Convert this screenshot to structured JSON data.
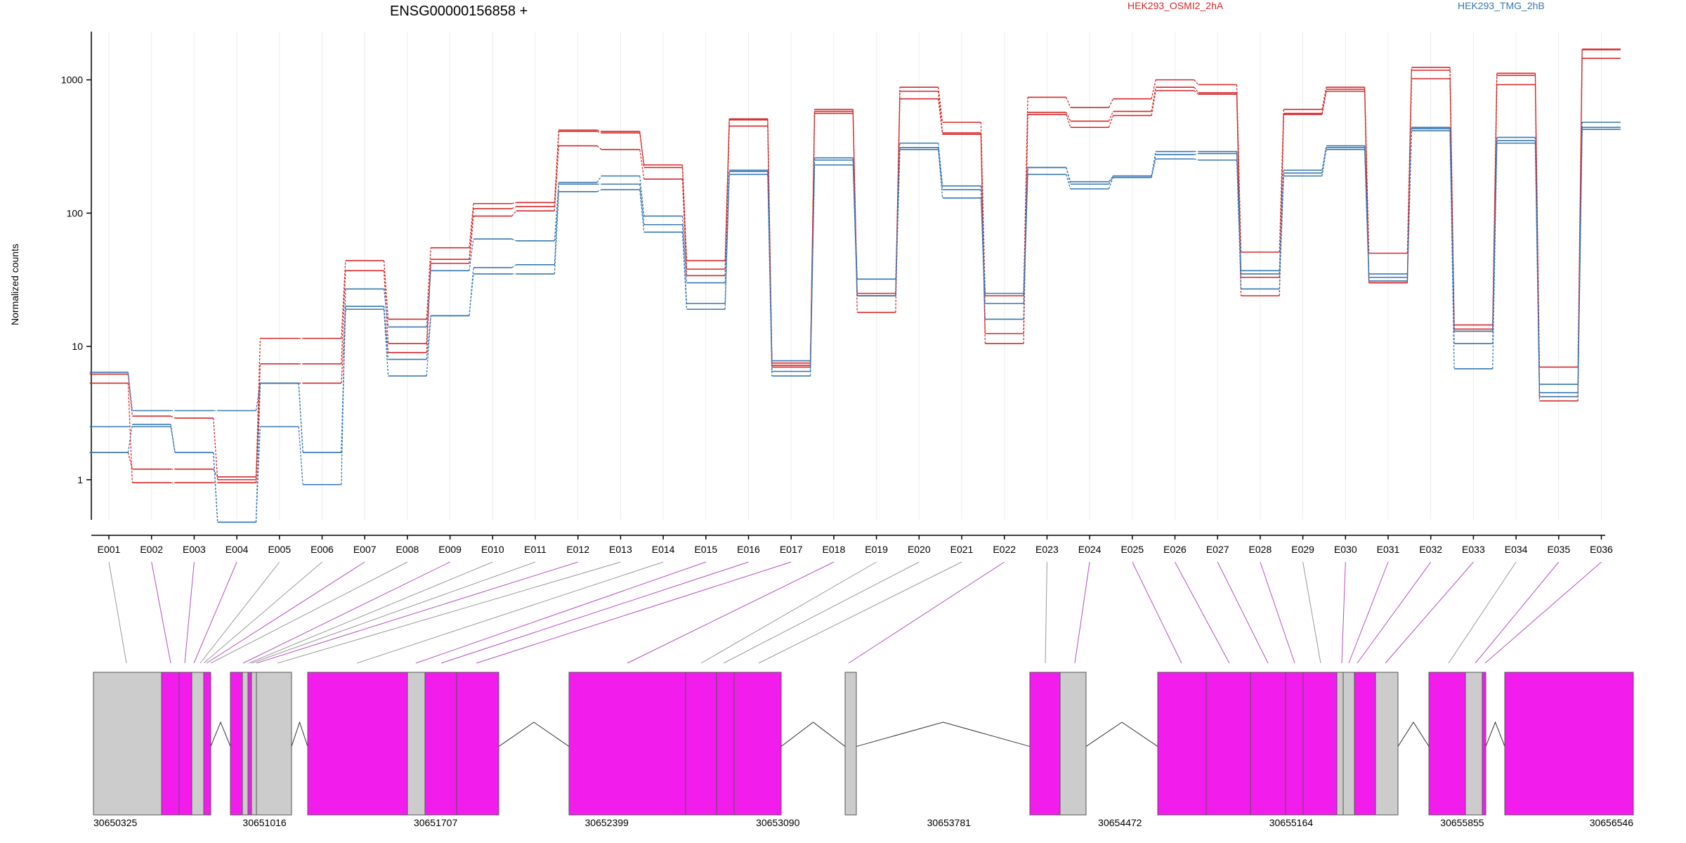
{
  "chart_data": {
    "type": "line",
    "title": "ENSG00000156858 +",
    "ylabel": "Normalized counts",
    "yscale": "log",
    "ylim": [
      0.5,
      2300
    ],
    "yticks": [
      1,
      10,
      100,
      1000
    ],
    "ytick_labels": [
      "1",
      "10",
      "100",
      "1000"
    ],
    "categories": [
      "E001",
      "E002",
      "E003",
      "E004",
      "E005",
      "E006",
      "E007",
      "E008",
      "E009",
      "E010",
      "E011",
      "E012",
      "E013",
      "E014",
      "E015",
      "E016",
      "E017",
      "E018",
      "E019",
      "E020",
      "E021",
      "E022",
      "E023",
      "E024",
      "E025",
      "E026",
      "E027",
      "E028",
      "E029",
      "E030",
      "E031",
      "E032",
      "E033",
      "E034",
      "E035",
      "E036"
    ],
    "legend_placement": "top",
    "series": [
      {
        "name": "HEK293_OSMI2_2hA",
        "color": "#d62728",
        "values": [
          6.2,
          3.0,
          2.9,
          1.0,
          11.5,
          11.5,
          44,
          16,
          55,
          118,
          120,
          420,
          410,
          230,
          44,
          510,
          7.5,
          600,
          24,
          880,
          480,
          24,
          740,
          620,
          720,
          1000,
          920,
          51,
          600,
          880,
          50,
          1240,
          14.5,
          1120,
          7,
          1700
        ]
      },
      {
        "name": "HEK293_OSMI2_2hA",
        "color": "#d62728",
        "values": [
          5.3,
          0.95,
          0.95,
          0.95,
          7.4,
          7.4,
          37,
          10.5,
          45,
          108,
          112,
          410,
          400,
          220,
          38,
          500,
          7.2,
          580,
          18,
          820,
          400,
          12.5,
          570,
          490,
          580,
          880,
          800,
          33,
          560,
          850,
          30,
          1180,
          13,
          1080,
          4.2,
          1680
        ]
      },
      {
        "name": "HEK293_OSMI2_2hA",
        "color": "#d62728",
        "values": [
          1.6,
          1.2,
          1.2,
          1.05,
          5.3,
          5.3,
          19,
          9,
          42,
          95,
          104,
          320,
          300,
          180,
          34,
          450,
          7.0,
          560,
          25,
          720,
          390,
          10.5,
          550,
          440,
          540,
          830,
          780,
          24,
          550,
          820,
          30,
          1020,
          13.5,
          920,
          3.9,
          1450
        ]
      },
      {
        "name": "HEK293_TMG_2hB",
        "color": "#3777b0",
        "values": [
          2.5,
          2.5,
          1.6,
          0.48,
          2.5,
          0.92,
          27,
          14,
          37,
          64,
          62,
          170,
          190,
          95,
          30,
          210,
          7.8,
          260,
          32,
          335,
          160,
          25,
          220,
          172,
          190,
          290,
          290,
          37,
          210,
          320,
          35,
          440,
          10.5,
          370,
          5.2,
          480
        ]
      },
      {
        "name": "HEK293_TMG_2hB",
        "color": "#3777b0",
        "values": [
          1.6,
          2.6,
          1.6,
          0.48,
          5.3,
          1.6,
          20,
          8,
          17,
          39,
          41,
          165,
          165,
          82,
          21,
          205,
          6.5,
          250,
          24,
          310,
          150,
          16,
          220,
          165,
          190,
          275,
          280,
          35,
          200,
          310,
          33,
          430,
          13,
          350,
          4.5,
          440
        ]
      },
      {
        "name": "HEK293_TMG_2hB",
        "color": "#3777b0",
        "values": [
          6.4,
          3.3,
          3.3,
          3.3,
          5.3,
          1.6,
          19,
          6,
          17,
          35,
          35,
          145,
          150,
          72,
          19,
          195,
          6.0,
          230,
          24,
          300,
          130,
          21,
          195,
          152,
          185,
          255,
          250,
          27,
          190,
          300,
          31,
          415,
          6.8,
          335,
          4.2,
          425
        ]
      }
    ]
  },
  "gene_model": {
    "coordinate_labels": [
      "30650325",
      "30651016",
      "30651707",
      "30652399",
      "30653090",
      "30653781",
      "30654472",
      "30655164",
      "30655855",
      "30656546"
    ],
    "colors": {
      "highlighted": "#f21ced",
      "other": "#cccccc",
      "edge": "#555555",
      "connector_highlighted": "#b34fc0",
      "connector_other": "#999999"
    }
  }
}
